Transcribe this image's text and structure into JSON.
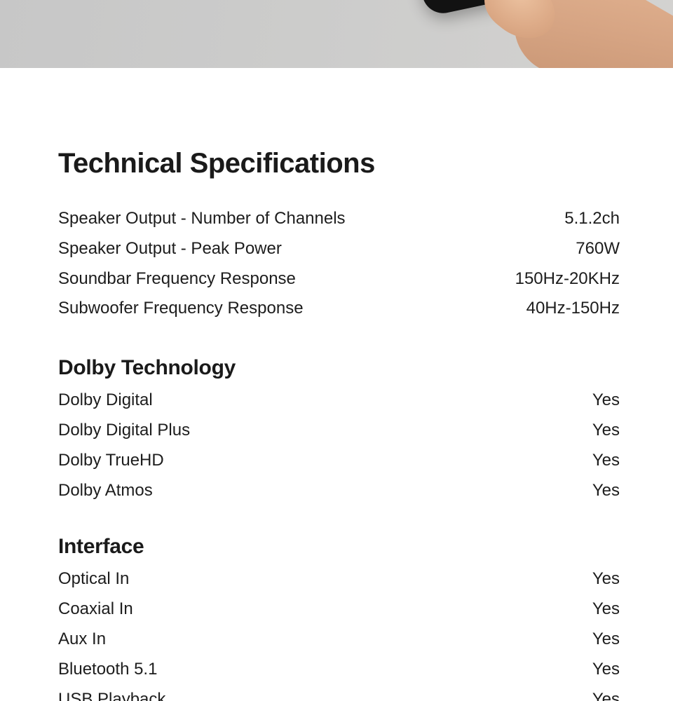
{
  "banner": {
    "scene": "hand-holding-remote-control",
    "colors": {
      "banner_gray": "#cbcbca",
      "remote_black": "#121212",
      "remote_face": "#3a3a3a",
      "skin_tone": "#d6a483"
    }
  },
  "title": "Technical Specifications",
  "text_color": "#1d1d1d",
  "background": "#ffffff",
  "sections": [
    {
      "heading": null,
      "rows": [
        {
          "label": "Speaker Output - Number of Channels",
          "value": "5.1.2ch"
        },
        {
          "label": "Speaker Output - Peak Power",
          "value": "760W"
        },
        {
          "label": "Soundbar Frequency Response",
          "value": "150Hz-20KHz"
        },
        {
          "label": "Subwoofer Frequency Response",
          "value": "40Hz-150Hz"
        }
      ]
    },
    {
      "heading": "Dolby Technology",
      "rows": [
        {
          "label": "Dolby Digital",
          "value": "Yes"
        },
        {
          "label": "Dolby Digital Plus",
          "value": "Yes"
        },
        {
          "label": "Dolby TrueHD",
          "value": "Yes"
        },
        {
          "label": "Dolby Atmos",
          "value": "Yes"
        }
      ]
    },
    {
      "heading": "Interface",
      "rows": [
        {
          "label": "Optical In",
          "value": "Yes"
        },
        {
          "label": "Coaxial In",
          "value": "Yes"
        },
        {
          "label": "Aux In",
          "value": "Yes"
        },
        {
          "label": "Bluetooth 5.1",
          "value": "Yes"
        },
        {
          "label": "USB Playback",
          "value": "Yes"
        }
      ]
    }
  ]
}
